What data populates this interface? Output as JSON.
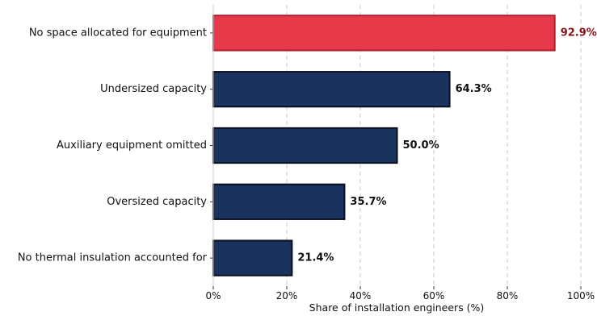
{
  "chart_data": {
    "type": "bar",
    "orientation": "horizontal",
    "categories": [
      "No space allocated for equipment",
      "Undersized capacity",
      "Auxiliary equipment omitted",
      "Oversized capacity",
      "No thermal insulation accounted for"
    ],
    "values": [
      92.9,
      64.3,
      50.0,
      35.7,
      21.4
    ],
    "value_labels": [
      "92.9%",
      "64.3%",
      "50.0%",
      "35.7%",
      "21.4%"
    ],
    "highlight_index": 0,
    "xlabel": "Share of installation engineers (%)",
    "xlim": [
      0,
      100
    ],
    "xticks": [
      0,
      20,
      40,
      60,
      80,
      100
    ],
    "xtick_labels": [
      "0%",
      "20%",
      "40%",
      "60%",
      "80%",
      "100%"
    ],
    "grid": "vertical dashed",
    "colors": {
      "highlight_fill": "#e63a4b",
      "highlight_edge": "#b01e2c",
      "highlight_label": "#8b1015",
      "bar_fill": "#19325e",
      "bar_edge": "#0b0f1f",
      "label": "#111111",
      "grid": "#c9c9c9"
    }
  }
}
